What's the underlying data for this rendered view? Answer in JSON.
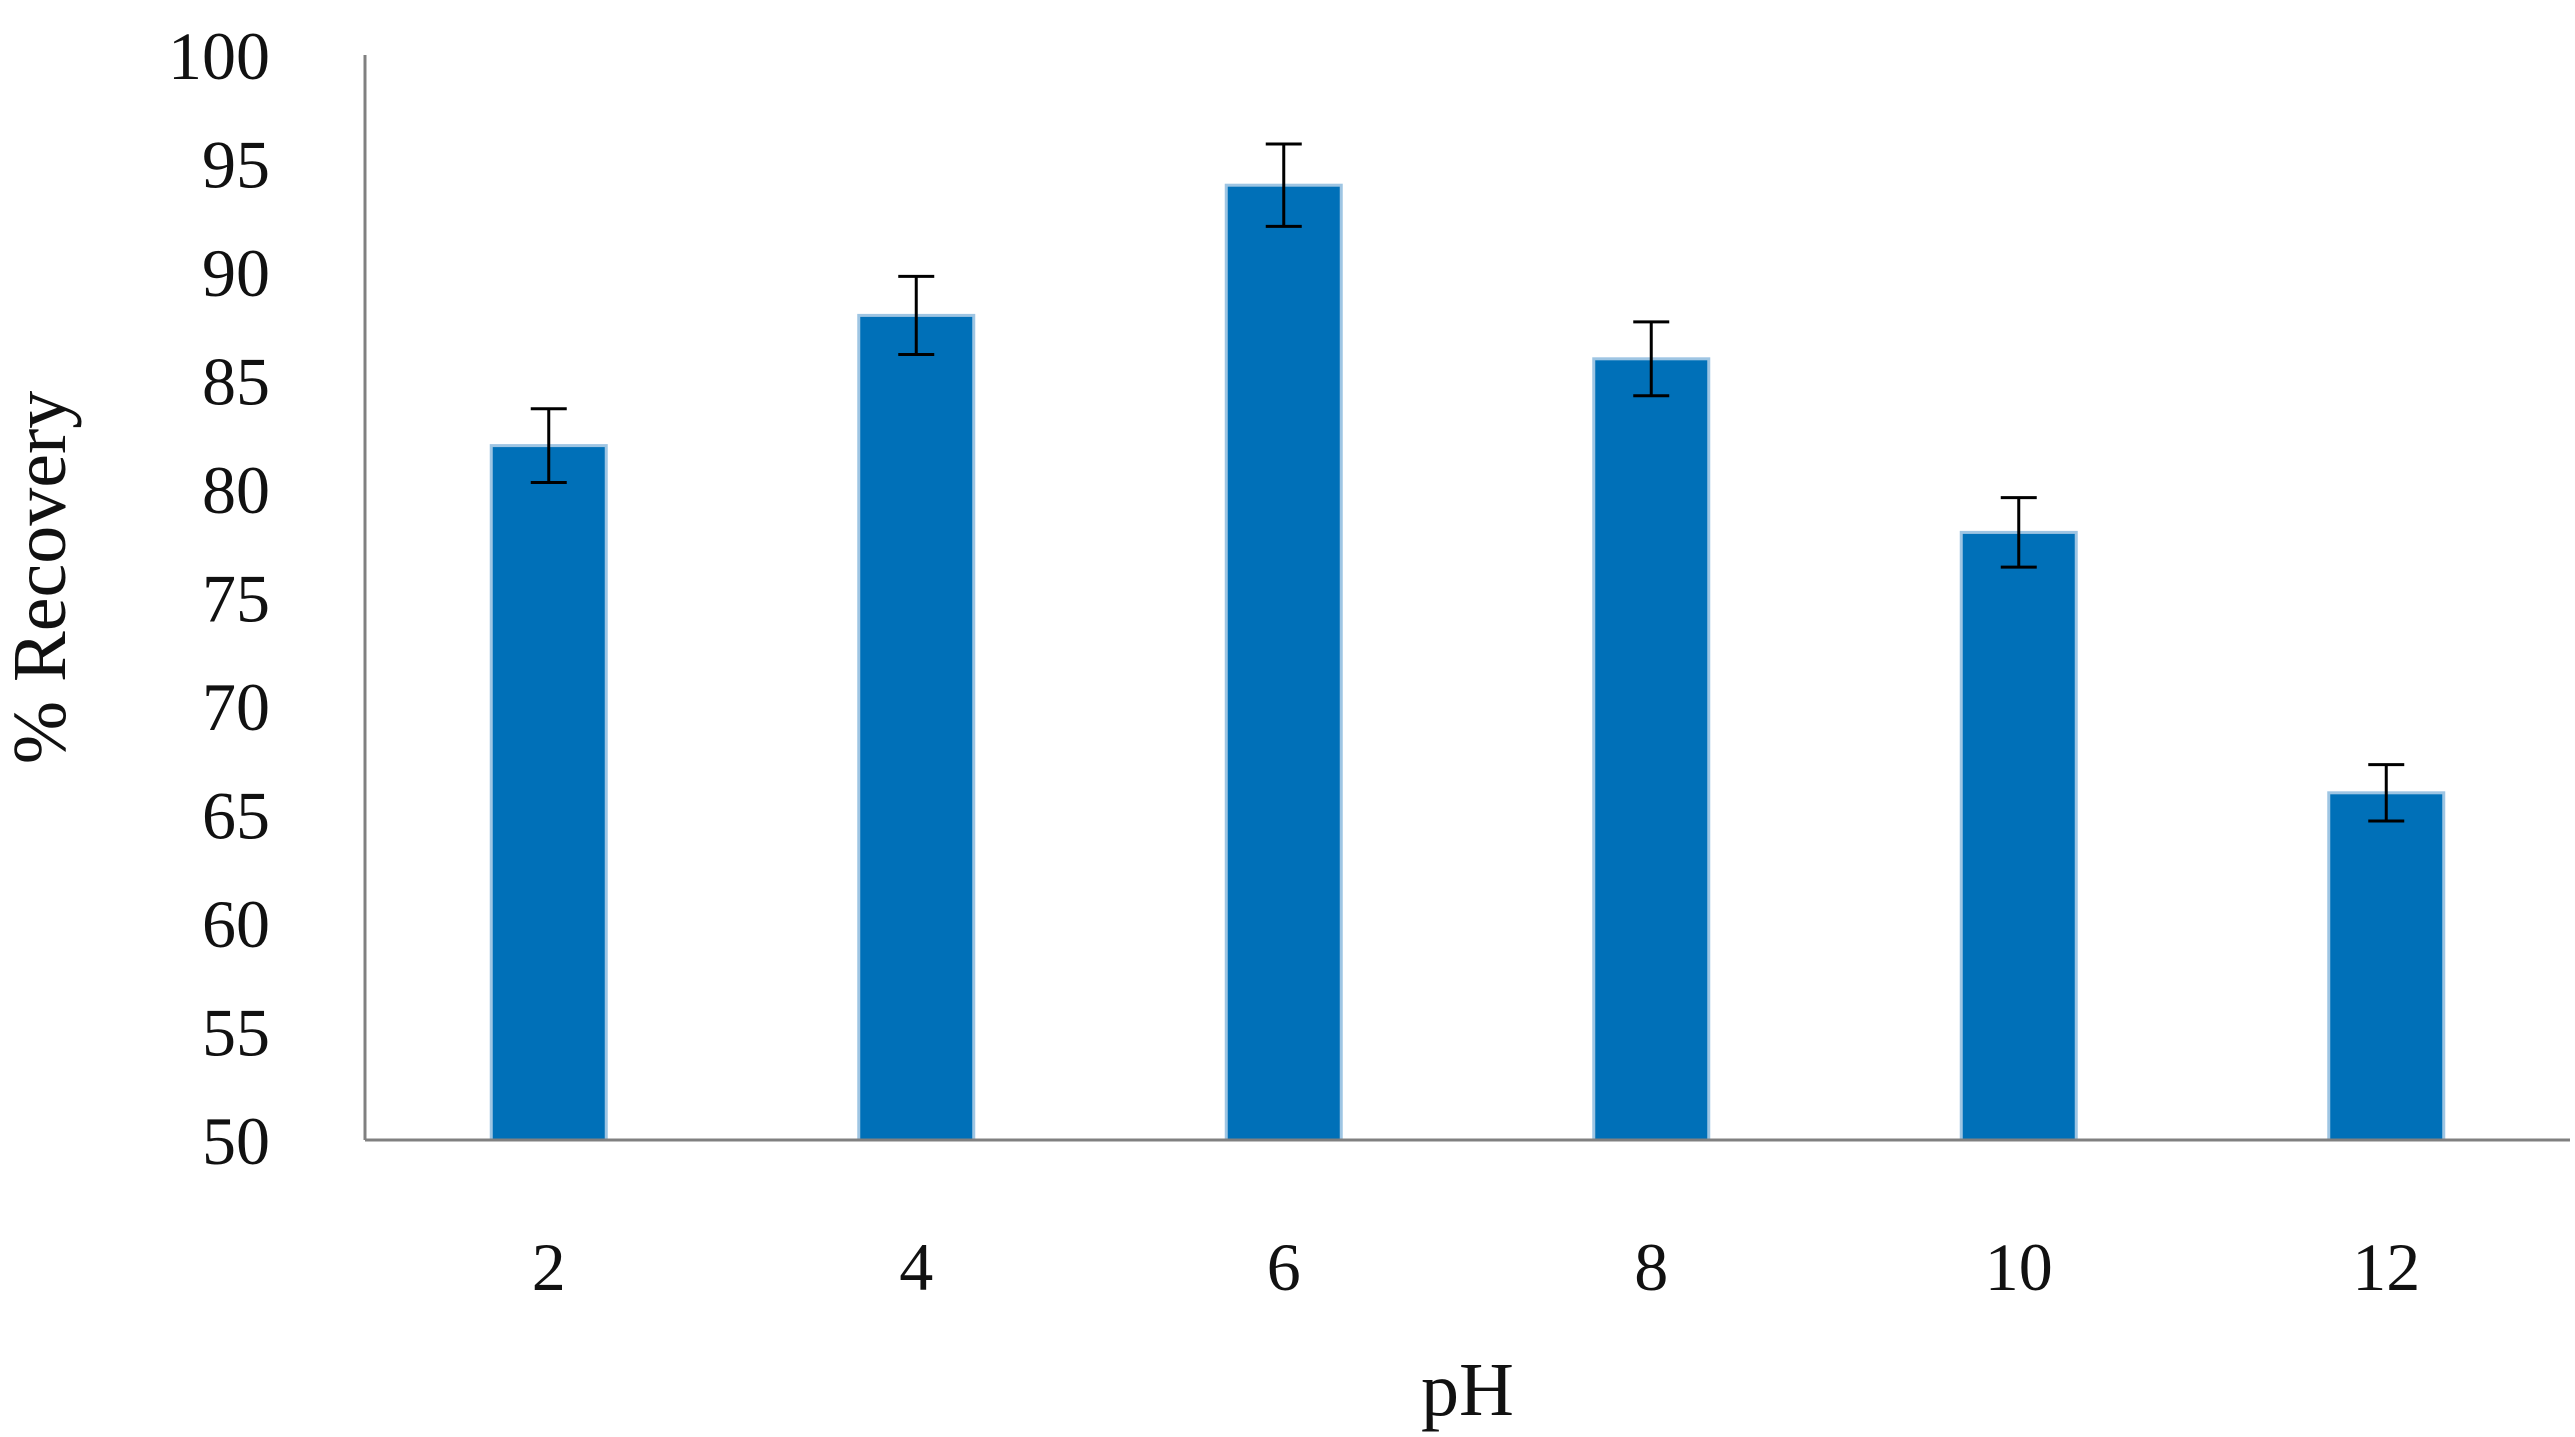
{
  "chart_data": {
    "type": "bar",
    "xlabel": "pH",
    "ylabel": "% Recovery",
    "categories": [
      "2",
      "4",
      "6",
      "8",
      "10",
      "12"
    ],
    "values": [
      82,
      88,
      94,
      86,
      78,
      66
    ],
    "error": [
      1.7,
      1.8,
      1.9,
      1.7,
      1.6,
      1.3
    ],
    "ylim": [
      50,
      100
    ],
    "yticks": [
      50,
      55,
      60,
      65,
      70,
      75,
      80,
      85,
      90,
      95,
      100
    ],
    "grid": false,
    "legend": "none",
    "colors": {
      "bar": "#0070B8",
      "bar_edge": "#9EC5E3",
      "axis": "#808080",
      "error": "#000000"
    }
  }
}
